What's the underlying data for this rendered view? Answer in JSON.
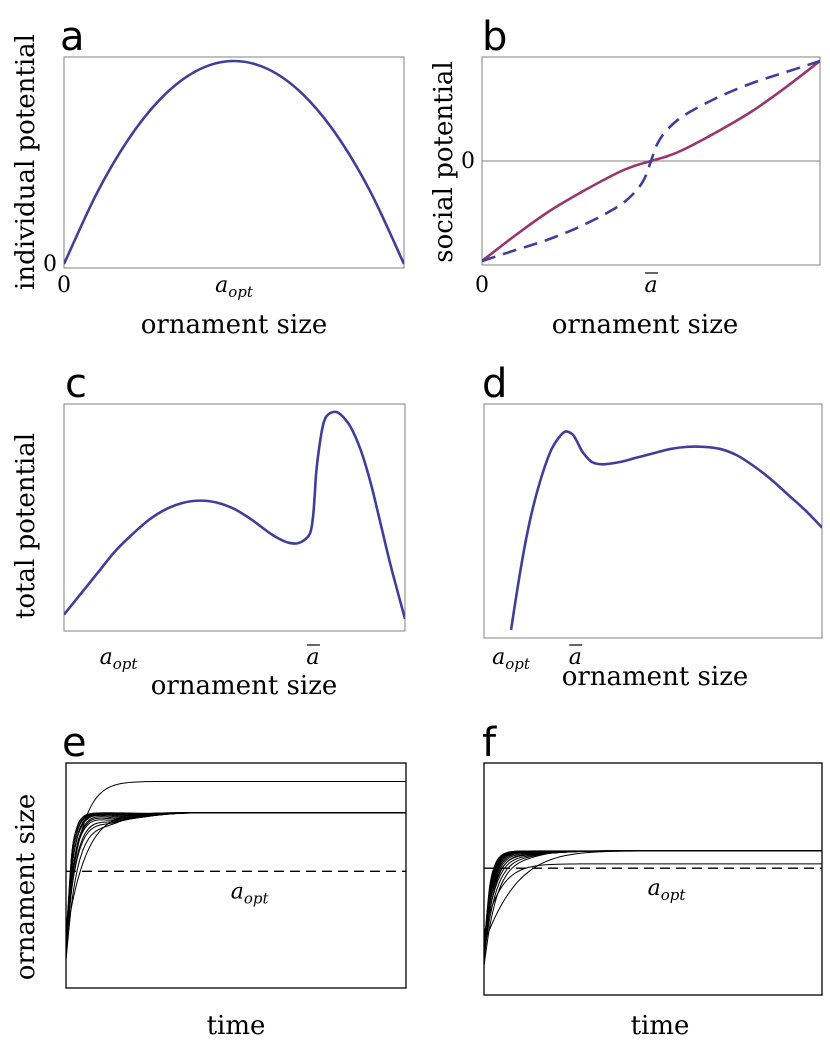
{
  "colors": {
    "blue": "#3f3f9a",
    "magenta": "#9b356e",
    "black": "#000000",
    "frame": "#808080"
  },
  "chart_data": [
    {
      "panel": "a",
      "type": "line",
      "ylabel": "individual potential",
      "xlabel": "ornament size",
      "xticks": [
        {
          "x": 0,
          "label": "0"
        },
        {
          "x": 0.5,
          "label": "a",
          "sub": "opt",
          "italic": true
        }
      ],
      "yticks": [
        {
          "y": 0,
          "label": "0"
        }
      ],
      "xlim": [
        0,
        1
      ],
      "ylim": [
        0,
        1
      ],
      "series": [
        {
          "style": "solid",
          "color": "blue",
          "x": [
            0,
            0.1,
            0.2,
            0.3,
            0.4,
            0.5,
            0.6,
            0.7,
            0.8,
            0.9,
            1.0
          ],
          "y": [
            0,
            0.36,
            0.64,
            0.84,
            0.96,
            1.0,
            0.96,
            0.84,
            0.64,
            0.36,
            0
          ]
        }
      ]
    },
    {
      "panel": "b",
      "type": "line",
      "ylabel": "social potential",
      "xlabel": "ornament size",
      "xticks": [
        {
          "x": 0,
          "label": "0"
        },
        {
          "x": 0.5,
          "label": "a",
          "overbar": true,
          "italic": true
        }
      ],
      "yticks": [
        {
          "y": 0,
          "label": "0"
        }
      ],
      "xlim": [
        0,
        1
      ],
      "ylim": [
        -1,
        1
      ],
      "zero_line": true,
      "series": [
        {
          "style": "solid",
          "color": "magenta",
          "x": [
            0,
            0.1,
            0.2,
            0.3,
            0.4,
            0.45,
            0.5,
            0.55,
            0.6,
            0.7,
            0.8,
            0.9,
            1.0
          ],
          "y": [
            -1,
            -0.74,
            -0.5,
            -0.3,
            -0.12,
            -0.05,
            0,
            0.05,
            0.12,
            0.3,
            0.5,
            0.74,
            1.0
          ]
        },
        {
          "style": "dashed",
          "color": "blue",
          "x": [
            0,
            0.1,
            0.2,
            0.3,
            0.4,
            0.45,
            0.48,
            0.5,
            0.52,
            0.55,
            0.6,
            0.7,
            0.8,
            0.9,
            1.0
          ],
          "y": [
            -1,
            -0.89,
            -0.78,
            -0.64,
            -0.46,
            -0.32,
            -0.18,
            0,
            0.18,
            0.32,
            0.46,
            0.64,
            0.78,
            0.89,
            1.0
          ]
        }
      ]
    },
    {
      "panel": "c",
      "type": "line",
      "ylabel": "total potential",
      "xlabel": "ornament size",
      "xticks": [
        {
          "x": 0.16,
          "label": "a",
          "sub": "opt",
          "italic": true
        },
        {
          "x": 0.73,
          "label": "a",
          "overbar": true,
          "italic": true
        }
      ],
      "yticks": [],
      "xlim": [
        0,
        1
      ],
      "ylim": [
        0,
        1
      ],
      "series": [
        {
          "style": "solid",
          "color": "blue",
          "x": [
            0,
            0.05,
            0.1,
            0.15,
            0.2,
            0.25,
            0.3,
            0.35,
            0.4,
            0.45,
            0.5,
            0.55,
            0.6,
            0.63,
            0.66,
            0.69,
            0.72,
            0.73,
            0.735,
            0.74,
            0.75,
            0.76,
            0.77,
            0.79,
            0.81,
            0.84,
            0.87,
            0.9,
            0.93,
            0.96,
            1.0
          ],
          "y": [
            0.04,
            0.14,
            0.24,
            0.34,
            0.42,
            0.49,
            0.54,
            0.57,
            0.58,
            0.57,
            0.54,
            0.49,
            0.43,
            0.4,
            0.38,
            0.38,
            0.42,
            0.5,
            0.6,
            0.72,
            0.85,
            0.94,
            0.98,
            1.0,
            0.99,
            0.93,
            0.82,
            0.66,
            0.46,
            0.26,
            0.02
          ]
        }
      ]
    },
    {
      "panel": "d",
      "type": "line",
      "ylabel": "",
      "xlabel": "ornament size",
      "xticks": [
        {
          "x": 0.08,
          "label": "a",
          "sub": "opt",
          "italic": true
        },
        {
          "x": 0.27,
          "label": "a",
          "overbar": true,
          "italic": true
        }
      ],
      "yticks": [],
      "xlim": [
        0,
        1
      ],
      "ylim": [
        0,
        1
      ],
      "series": [
        {
          "style": "solid",
          "color": "blue",
          "x": [
            0.08,
            0.1,
            0.12,
            0.14,
            0.16,
            0.18,
            0.2,
            0.22,
            0.24,
            0.26,
            0.27,
            0.28,
            0.29,
            0.3,
            0.32,
            0.35,
            0.4,
            0.45,
            0.5,
            0.55,
            0.6,
            0.65,
            0.7,
            0.75,
            0.8,
            0.85,
            0.9,
            0.95,
            1.0
          ],
          "y": [
            0.0,
            0.2,
            0.38,
            0.53,
            0.65,
            0.75,
            0.83,
            0.88,
            0.91,
            0.9,
            0.88,
            0.85,
            0.82,
            0.8,
            0.77,
            0.76,
            0.77,
            0.79,
            0.81,
            0.83,
            0.84,
            0.84,
            0.83,
            0.8,
            0.75,
            0.69,
            0.62,
            0.55,
            0.47
          ]
        }
      ]
    },
    {
      "panel": "e",
      "type": "line",
      "ylabel": "ornament size",
      "xlabel": "time",
      "xticks": [],
      "yticks": [],
      "xlim": [
        0,
        1
      ],
      "ylim": [
        0,
        1
      ],
      "reference_line": {
        "y": 0.52,
        "style": "dashed",
        "label": "a",
        "sub": "opt"
      },
      "bundle": {
        "count": 14,
        "t_start": 0.0,
        "y0_min": 0.5,
        "y0_max": 0.78,
        "k_min": 30,
        "k_max": 70
      },
      "series": [
        {
          "style": "solid",
          "color": "black",
          "name": "",
          "plateau": 0.8,
          "y0": 0.48,
          "k": 35
        },
        {
          "style": "solid",
          "color": "black",
          "name": "",
          "plateau": 0.95,
          "y0": 0.55,
          "k": 45
        }
      ]
    },
    {
      "panel": "f",
      "type": "line",
      "ylabel": "",
      "xlabel": "time",
      "xticks": [],
      "yticks": [],
      "xlim": [
        0,
        1
      ],
      "ylim": [
        0,
        1
      ],
      "reference_line": {
        "y": 0.55,
        "style": "dashed",
        "label": "a",
        "sub": "opt"
      },
      "bundle": {
        "count": 16,
        "t_start": 0.0,
        "y0_min": 0.52,
        "y0_max": 0.63,
        "k_min": 25,
        "k_max": 60
      },
      "series": [
        {
          "style": "solid",
          "color": "black",
          "name": "",
          "plateau": 0.63,
          "y0": 0.52,
          "k": 20
        },
        {
          "style": "solid",
          "color": "black",
          "name": "",
          "plateau": 0.57,
          "y0": 0.5,
          "k": 40
        }
      ]
    }
  ]
}
